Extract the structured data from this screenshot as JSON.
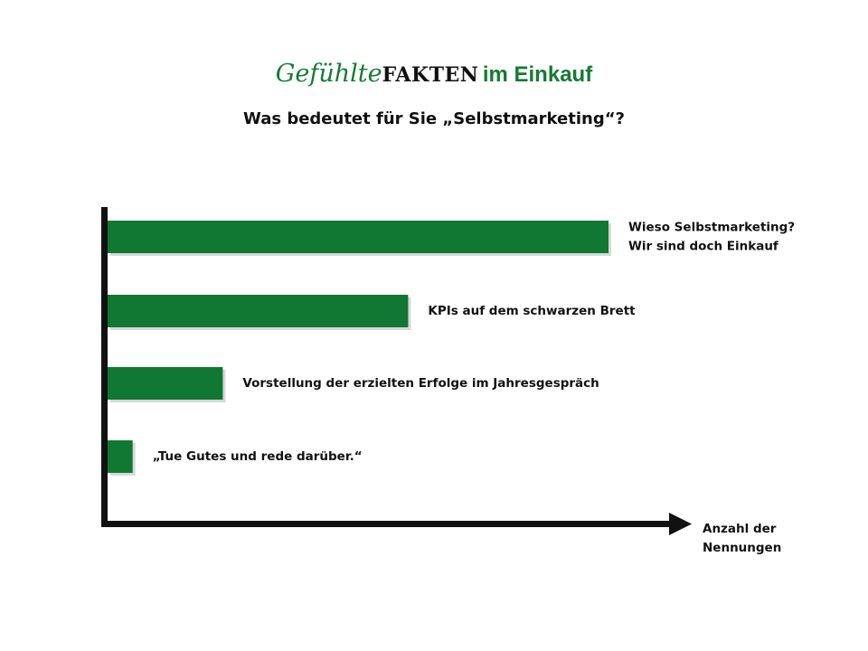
{
  "header": {
    "title_script": "Gefühlte",
    "title_bold": "FAKTEN",
    "title_plain": "im Einkauf",
    "subtitle": "Was bedeutet für Sie „Selbstmarketing“?"
  },
  "colors": {
    "bar": "#107833",
    "brand_green": "#157a33",
    "axis": "#111111"
  },
  "chart_data": {
    "type": "bar",
    "orientation": "horizontal",
    "title": "Was bedeutet für Sie „Selbstmarketing“?",
    "xlabel": "Anzahl der Nennungen",
    "ylabel": "",
    "grid": false,
    "legend": "none",
    "xlim": [
      0,
      100
    ],
    "categories": [
      [
        "Wieso Selbstmarketing?",
        "Wir sind doch Einkauf"
      ],
      [
        "KPIs auf dem schwarzen Brett"
      ],
      [
        "Vorstellung der erzielten Erfolge im Jahresgespräch"
      ],
      [
        "„Tue Gutes und rede darüber.“"
      ]
    ],
    "values": [
      100,
      60,
      23,
      5
    ]
  }
}
